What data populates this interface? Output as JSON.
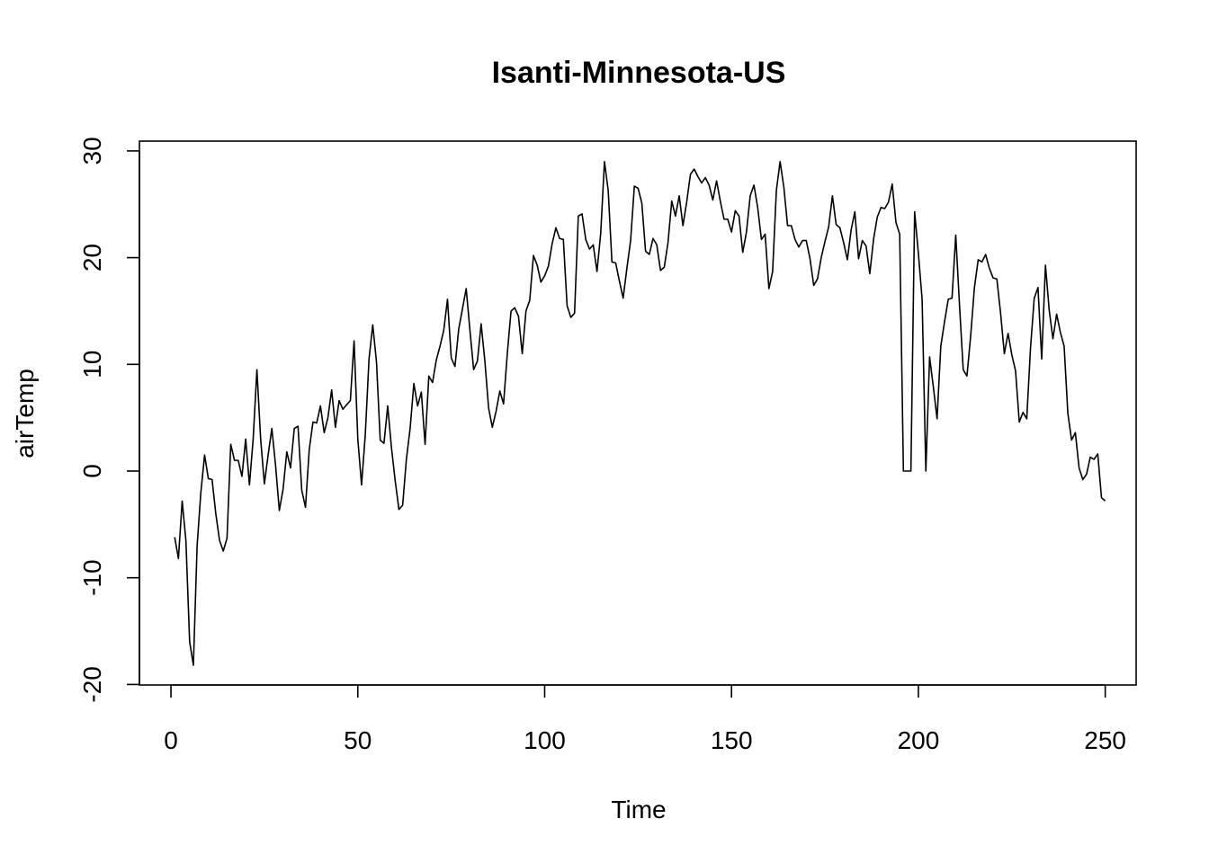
{
  "chart_data": {
    "type": "line",
    "title": "Isanti-Minnesota-US",
    "xlabel": "Time",
    "ylabel": "airTemp",
    "xlim": [
      1,
      248
    ],
    "ylim": [
      -20,
      30
    ],
    "x_ticks": [
      0,
      50,
      100,
      150,
      200,
      250
    ],
    "y_ticks": [
      -20,
      -10,
      0,
      10,
      20,
      30
    ],
    "grid": false,
    "series": [
      {
        "color": "#000000",
        "x_start": 1,
        "values": [
          -6.2,
          -8.2,
          -2.8,
          -6.5,
          -16.0,
          -18.2,
          -7.0,
          -2.0,
          1.5,
          -0.7,
          -0.8,
          -4.0,
          -6.5,
          -7.5,
          -6.3,
          2.5,
          1.0,
          1.0,
          -0.5,
          3.0,
          -1.3,
          3.0,
          9.5,
          3.0,
          -1.2,
          1.5,
          4.0,
          0.5,
          -3.7,
          -1.7,
          1.8,
          0.3,
          4.0,
          4.2,
          -1.8,
          -3.4,
          2.0,
          4.6,
          4.5,
          6.1,
          3.6,
          5.0,
          7.6,
          4.1,
          6.6,
          5.8,
          6.2,
          6.6,
          12.2,
          3.0,
          -1.3,
          3.4,
          10.5,
          13.7,
          10.2,
          2.9,
          2.6,
          6.1,
          2.2,
          -0.9,
          -3.6,
          -3.2,
          1.1,
          4.0,
          8.2,
          6.1,
          7.4,
          2.5,
          8.9,
          8.3,
          10.4,
          11.7,
          13.2,
          16.1,
          10.6,
          9.8,
          13.3,
          15.2,
          17.1,
          13.2,
          9.5,
          10.3,
          13.8,
          10.3,
          5.9,
          4.1,
          5.6,
          7.5,
          6.3,
          11.0,
          15.0,
          15.3,
          14.5,
          11.0,
          15.0,
          16.0,
          20.2,
          19.3,
          17.7,
          18.3,
          19.2,
          21.3,
          22.8,
          21.8,
          21.7,
          15.5,
          14.4,
          14.8,
          23.9,
          24.1,
          21.7,
          20.8,
          21.2,
          18.7,
          22.3,
          29.0,
          26.3,
          19.6,
          19.5,
          17.8,
          16.2,
          19.0,
          21.6,
          26.7,
          26.5,
          25.1,
          20.6,
          20.3,
          21.8,
          21.2,
          18.8,
          19.1,
          21.4,
          25.3,
          23.9,
          25.8,
          23.0,
          25.2,
          27.8,
          28.3,
          27.6,
          27.0,
          27.5,
          26.8,
          25.4,
          27.2,
          25.3,
          23.6,
          23.6,
          22.4,
          24.4,
          23.9,
          20.5,
          22.4,
          25.8,
          26.8,
          24.7,
          21.7,
          22.2,
          17.1,
          18.7,
          26.3,
          29.0,
          26.6,
          23.0,
          23.0,
          21.7,
          21.0,
          21.6,
          21.6,
          19.9,
          17.4,
          18.0,
          20.0,
          21.5,
          22.9,
          25.8,
          23.1,
          22.8,
          21.4,
          19.8,
          22.6,
          24.3,
          19.9,
          21.6,
          21.1,
          18.5,
          21.7,
          23.8,
          24.7,
          24.6,
          25.2,
          26.9,
          23.3,
          22.2,
          0.0,
          0.0,
          0.0,
          24.3,
          20.4,
          16.1,
          0.0,
          10.7,
          7.9,
          4.9,
          11.7,
          14.0,
          16.1,
          16.2,
          22.1,
          15.6,
          9.5,
          8.9,
          12.7,
          17.2,
          19.8,
          19.6,
          20.3,
          19.0,
          18.1,
          18.0,
          14.8,
          11.0,
          12.9,
          10.9,
          9.4,
          4.6,
          5.5,
          4.9,
          11.5,
          16.2,
          17.2,
          10.5,
          19.3,
          15.1,
          12.4,
          14.7,
          13.0,
          11.7,
          5.4,
          2.9,
          3.6,
          0.3,
          -0.8,
          -0.3,
          1.3,
          1.1,
          1.6,
          -2.5,
          -2.8
        ]
      }
    ]
  }
}
